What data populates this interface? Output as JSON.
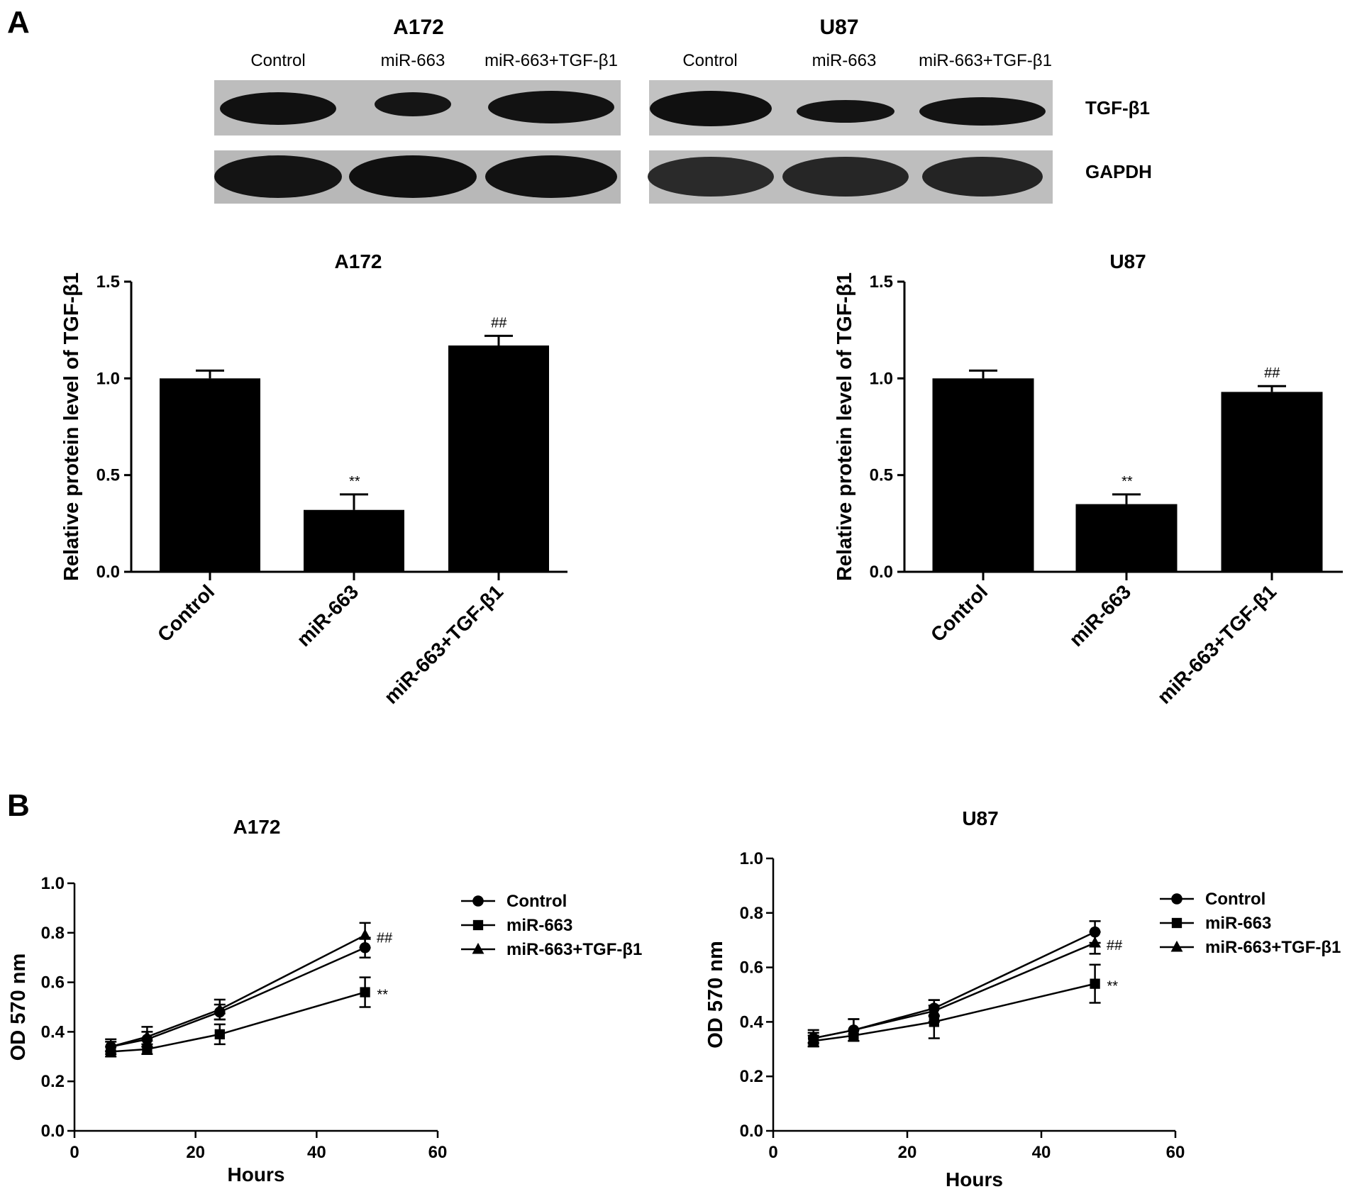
{
  "panel_labels": [
    "A",
    "B"
  ],
  "western_blot": {
    "groups": [
      {
        "cell_line": "A172",
        "lanes": [
          "Control",
          "miR-663",
          "miR-663+TGF-β1"
        ]
      },
      {
        "cell_line": "U87",
        "lanes": [
          "Control",
          "miR-663",
          "miR-663+TGF-β1"
        ]
      }
    ],
    "proteins": [
      "TGF-β1",
      "GAPDH"
    ]
  },
  "chart_data": [
    {
      "type": "bar",
      "title": "A172",
      "ylabel": "Relative protein level of TGF-β1",
      "xlabel": "",
      "categories": [
        "Control",
        "miR-663",
        "miR-663+TGF-β1"
      ],
      "values": [
        1.0,
        0.32,
        1.17
      ],
      "errors": [
        0.04,
        0.08,
        0.05
      ],
      "annotations": [
        "",
        "**",
        "##"
      ],
      "ylim": [
        0,
        1.5
      ],
      "yticks": [
        "0.0",
        "0.5",
        "1.0",
        "1.5"
      ],
      "bar_color": "#000000"
    },
    {
      "type": "bar",
      "title": "U87",
      "ylabel": "Relative protein level of TGF-β1",
      "xlabel": "",
      "categories": [
        "Control",
        "miR-663",
        "miR-663+TGF-β1"
      ],
      "values": [
        1.0,
        0.35,
        0.93
      ],
      "errors": [
        0.04,
        0.05,
        0.03
      ],
      "annotations": [
        "",
        "**",
        "##"
      ],
      "ylim": [
        0,
        1.5
      ],
      "yticks": [
        "0.0",
        "0.5",
        "1.0",
        "1.5"
      ],
      "bar_color": "#000000"
    },
    {
      "type": "line",
      "title": "A172",
      "xlabel": "Hours",
      "ylabel": "OD 570 nm",
      "xlim": [
        0,
        60
      ],
      "ylim": [
        0,
        1.0
      ],
      "xticks": [
        "0",
        "20",
        "40",
        "60"
      ],
      "yticks": [
        "0.0",
        "0.2",
        "0.4",
        "0.6",
        "0.8",
        "1.0"
      ],
      "x": [
        6,
        12,
        24,
        48
      ],
      "series": [
        {
          "name": "Control",
          "marker": "circle",
          "values": [
            0.34,
            0.37,
            0.48,
            0.74
          ],
          "errors": [
            0.02,
            0.03,
            0.03,
            0.04
          ]
        },
        {
          "name": "miR-663",
          "marker": "square",
          "values": [
            0.32,
            0.33,
            0.39,
            0.56
          ],
          "errors": [
            0.02,
            0.02,
            0.04,
            0.06
          ]
        },
        {
          "name": "miR-663+TGF-β1",
          "marker": "triangle",
          "values": [
            0.34,
            0.38,
            0.49,
            0.79
          ],
          "errors": [
            0.03,
            0.04,
            0.04,
            0.05
          ]
        }
      ],
      "annotations": [
        {
          "label": "##",
          "at": 48,
          "near": "miR-663+TGF-β1"
        },
        {
          "label": "**",
          "at": 48,
          "near": "miR-663"
        }
      ],
      "legend_position": "right"
    },
    {
      "type": "line",
      "title": "U87",
      "xlabel": "Hours",
      "ylabel": "OD 570 nm",
      "xlim": [
        0,
        60
      ],
      "ylim": [
        0,
        1.0
      ],
      "xticks": [
        "0",
        "20",
        "40",
        "60"
      ],
      "yticks": [
        "0.0",
        "0.2",
        "0.4",
        "0.6",
        "0.8",
        "1.0"
      ],
      "x": [
        6,
        12,
        24,
        48
      ],
      "series": [
        {
          "name": "Control",
          "marker": "circle",
          "values": [
            0.34,
            0.37,
            0.45,
            0.73
          ],
          "errors": [
            0.02,
            0.04,
            0.03,
            0.04
          ]
        },
        {
          "name": "miR-663",
          "marker": "square",
          "values": [
            0.33,
            0.35,
            0.4,
            0.54
          ],
          "errors": [
            0.02,
            0.02,
            0.06,
            0.07
          ]
        },
        {
          "name": "miR-663+TGF-β1",
          "marker": "triangle",
          "values": [
            0.34,
            0.37,
            0.44,
            0.69
          ],
          "errors": [
            0.03,
            0.04,
            0.04,
            0.04
          ]
        }
      ],
      "annotations": [
        {
          "label": "##",
          "at": 48,
          "near": "miR-663+TGF-β1"
        },
        {
          "label": "**",
          "at": 48,
          "near": "miR-663"
        }
      ],
      "legend_position": "right"
    }
  ]
}
